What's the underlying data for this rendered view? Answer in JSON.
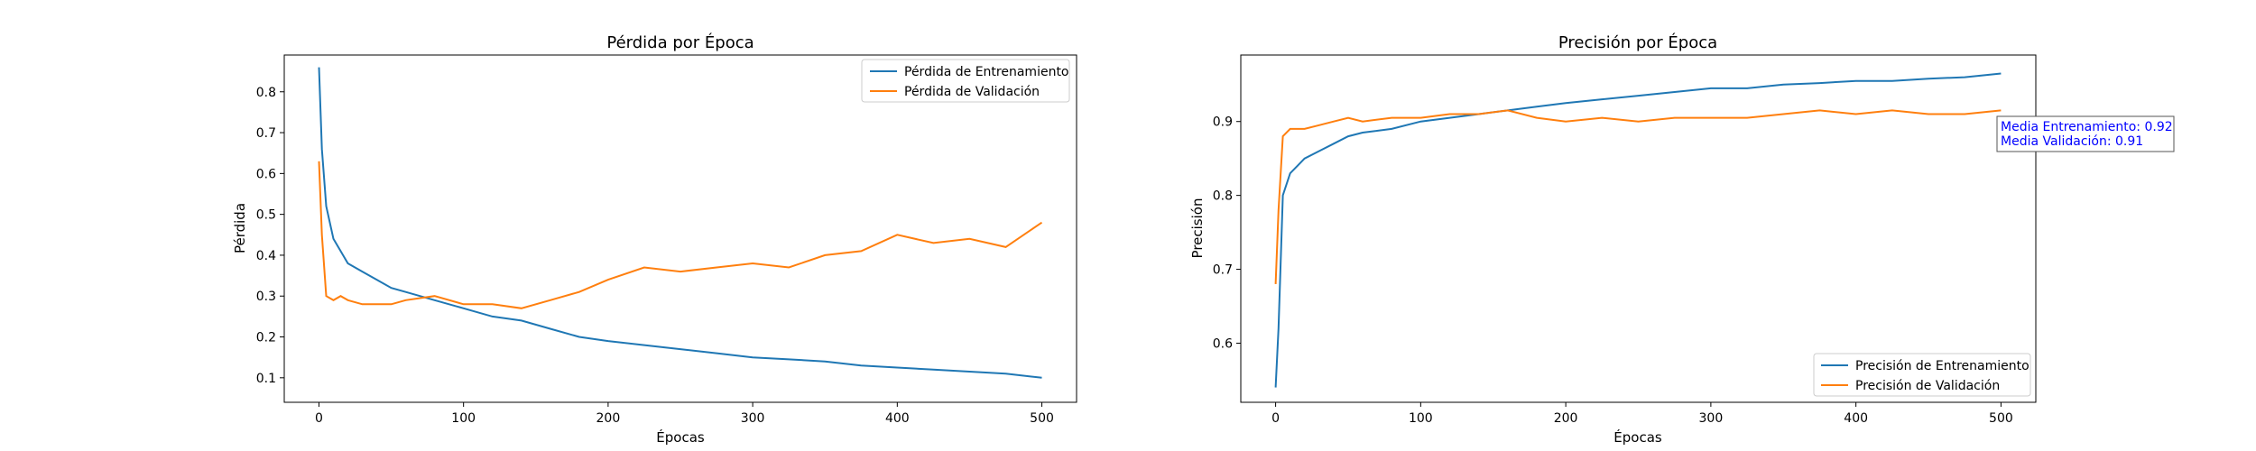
{
  "colors": {
    "train": "#1f77b4",
    "val": "#ff7f0e",
    "annotation": "#0000ff"
  },
  "charts": [
    {
      "title": "Pérdida por Época",
      "xlabel": "Épocas",
      "ylabel": "Pérdida",
      "legend": [
        "Pérdida de Entrenamiento",
        "Pérdida de Validación"
      ],
      "legend_position": "top-right",
      "x_ticks": [
        "0",
        "100",
        "200",
        "300",
        "400",
        "500"
      ],
      "y_ticks": [
        "0.1",
        "0.2",
        "0.3",
        "0.4",
        "0.5",
        "0.6",
        "0.7",
        "0.8"
      ]
    },
    {
      "title": "Precisión por Época",
      "xlabel": "Épocas",
      "ylabel": "Precisión",
      "legend": [
        "Precisión de Entrenamiento",
        "Precisión de Validación"
      ],
      "legend_position": "bottom-right",
      "x_ticks": [
        "0",
        "100",
        "200",
        "300",
        "400",
        "500"
      ],
      "y_ticks": [
        "0.6",
        "0.7",
        "0.8",
        "0.9"
      ],
      "annotation": [
        "Media Entrenamiento: 0.92",
        "Media Validación: 0.91"
      ]
    }
  ],
  "chart_data": [
    {
      "type": "line",
      "title": "Pérdida por Época",
      "xlabel": "Épocas",
      "ylabel": "Pérdida",
      "xlim": [
        -24,
        524
      ],
      "ylim": [
        0.04,
        0.89
      ],
      "grid": false,
      "legend": "top-right",
      "x": [
        0,
        2,
        5,
        10,
        15,
        20,
        30,
        40,
        50,
        60,
        80,
        100,
        120,
        140,
        160,
        180,
        200,
        225,
        250,
        275,
        300,
        325,
        350,
        375,
        400,
        425,
        450,
        475,
        500
      ],
      "series": [
        {
          "name": "Pérdida de Entrenamiento",
          "values": [
            0.86,
            0.66,
            0.52,
            0.44,
            0.41,
            0.38,
            0.36,
            0.34,
            0.32,
            0.31,
            0.29,
            0.27,
            0.25,
            0.24,
            0.22,
            0.2,
            0.19,
            0.18,
            0.17,
            0.16,
            0.15,
            0.145,
            0.14,
            0.13,
            0.125,
            0.12,
            0.115,
            0.11,
            0.1
          ]
        },
        {
          "name": "Pérdida de Validación",
          "values": [
            0.63,
            0.45,
            0.3,
            0.29,
            0.3,
            0.29,
            0.28,
            0.28,
            0.28,
            0.29,
            0.3,
            0.28,
            0.28,
            0.27,
            0.29,
            0.31,
            0.34,
            0.37,
            0.36,
            0.37,
            0.38,
            0.37,
            0.4,
            0.41,
            0.45,
            0.43,
            0.44,
            0.42,
            0.48
          ]
        }
      ]
    },
    {
      "type": "line",
      "title": "Precisión por Época",
      "xlabel": "Épocas",
      "ylabel": "Precisión",
      "xlim": [
        -24,
        524
      ],
      "ylim": [
        0.52,
        0.99
      ],
      "grid": false,
      "legend": "bottom-right",
      "x": [
        0,
        2,
        5,
        10,
        15,
        20,
        30,
        40,
        50,
        60,
        80,
        100,
        120,
        140,
        160,
        180,
        200,
        225,
        250,
        275,
        300,
        325,
        350,
        375,
        400,
        425,
        450,
        475,
        500
      ],
      "series": [
        {
          "name": "Precisión de Entrenamiento",
          "values": [
            0.54,
            0.62,
            0.8,
            0.83,
            0.84,
            0.85,
            0.86,
            0.87,
            0.88,
            0.885,
            0.89,
            0.9,
            0.905,
            0.91,
            0.915,
            0.92,
            0.925,
            0.93,
            0.935,
            0.94,
            0.945,
            0.945,
            0.95,
            0.952,
            0.955,
            0.955,
            0.958,
            0.96,
            0.965
          ]
        },
        {
          "name": "Precisión de Validación",
          "values": [
            0.68,
            0.78,
            0.88,
            0.89,
            0.89,
            0.89,
            0.895,
            0.9,
            0.905,
            0.9,
            0.905,
            0.905,
            0.91,
            0.91,
            0.915,
            0.905,
            0.9,
            0.905,
            0.9,
            0.905,
            0.905,
            0.905,
            0.91,
            0.915,
            0.91,
            0.915,
            0.91,
            0.91,
            0.915
          ]
        }
      ]
    }
  ]
}
